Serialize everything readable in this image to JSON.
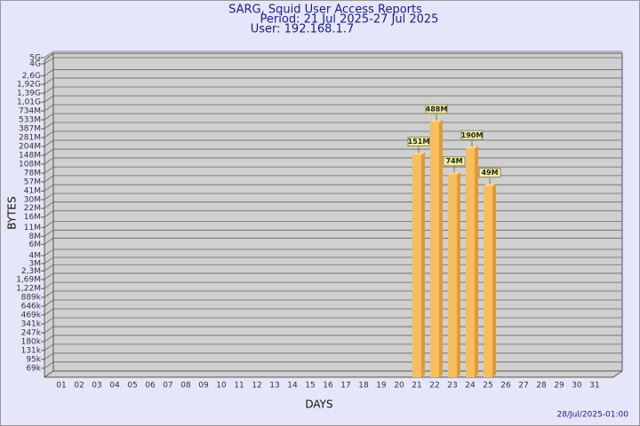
{
  "chart_data": {
    "type": "bar",
    "title": "SARG, Squid User Access Reports",
    "subtitle": [
      "Period: 21 Jul 2025-27 Jul 2025",
      "User: 192.168.1.7"
    ],
    "x_label": "DAYS",
    "y_label": "BYTES",
    "footer": "28/Jul/2025-01:00",
    "categories": [
      "01",
      "02",
      "03",
      "04",
      "05",
      "06",
      "07",
      "08",
      "09",
      "10",
      "11",
      "12",
      "13",
      "14",
      "15",
      "16",
      "17",
      "18",
      "19",
      "20",
      "21",
      "22",
      "23",
      "24",
      "25",
      "26",
      "27",
      "28",
      "29",
      "30",
      "31"
    ],
    "values": [
      null,
      null,
      null,
      null,
      null,
      null,
      null,
      null,
      null,
      null,
      null,
      null,
      null,
      null,
      null,
      null,
      null,
      null,
      null,
      null,
      151000000,
      488000000,
      74000000,
      190000000,
      49000000,
      null,
      null,
      null,
      null,
      null,
      null
    ],
    "value_labels": [
      null,
      null,
      null,
      null,
      null,
      null,
      null,
      null,
      null,
      null,
      null,
      null,
      null,
      null,
      null,
      null,
      null,
      null,
      null,
      null,
      "151M",
      "488M",
      "74M",
      "190M",
      "49M",
      null,
      null,
      null,
      null,
      null,
      null
    ],
    "color": "#f7be5e",
    "side_color": "#e09a36",
    "log_scale": true,
    "grid": true,
    "ylim": [
      50000,
      5000000000
    ],
    "yticks": [
      {
        "value": 5000000000,
        "label": "5G"
      },
      {
        "value": 4000000000,
        "label": "4G"
      },
      {
        "value": 2600000000,
        "label": "2,6G"
      },
      {
        "value": 1920000000,
        "label": "1,92G"
      },
      {
        "value": 1390000000,
        "label": "1,39G"
      },
      {
        "value": 1010000000,
        "label": "1,01G"
      },
      {
        "value": 734000000,
        "label": "734M"
      },
      {
        "value": 533000000,
        "label": "533M"
      },
      {
        "value": 387000000,
        "label": "387M"
      },
      {
        "value": 281000000,
        "label": "281M"
      },
      {
        "value": 204000000,
        "label": "204M"
      },
      {
        "value": 148000000,
        "label": "148M"
      },
      {
        "value": 108000000,
        "label": "108M"
      },
      {
        "value": 78000000,
        "label": "78M"
      },
      {
        "value": 57000000,
        "label": "57M"
      },
      {
        "value": 41000000,
        "label": "41M"
      },
      {
        "value": 30000000,
        "label": "30M"
      },
      {
        "value": 22000000,
        "label": "22M"
      },
      {
        "value": 16000000,
        "label": "16M"
      },
      {
        "value": 11000000,
        "label": "11M"
      },
      {
        "value": 8000000,
        "label": "8M"
      },
      {
        "value": 6000000,
        "label": "6M"
      },
      {
        "value": 4000000,
        "label": "4M"
      },
      {
        "value": 3000000,
        "label": "3M"
      },
      {
        "value": 2300000,
        "label": "2,3M"
      },
      {
        "value": 1690000,
        "label": "1,69M"
      },
      {
        "value": 1220000,
        "label": "1,22M"
      },
      {
        "value": 889000,
        "label": "889k"
      },
      {
        "value": 646000,
        "label": "646k"
      },
      {
        "value": 469000,
        "label": "469k"
      },
      {
        "value": 341000,
        "label": "341k"
      },
      {
        "value": 247000,
        "label": "247k"
      },
      {
        "value": 180000,
        "label": "180k"
      },
      {
        "value": 131000,
        "label": "131k"
      },
      {
        "value": 95000,
        "label": "95k"
      },
      {
        "value": 69000,
        "label": "69k"
      }
    ]
  }
}
